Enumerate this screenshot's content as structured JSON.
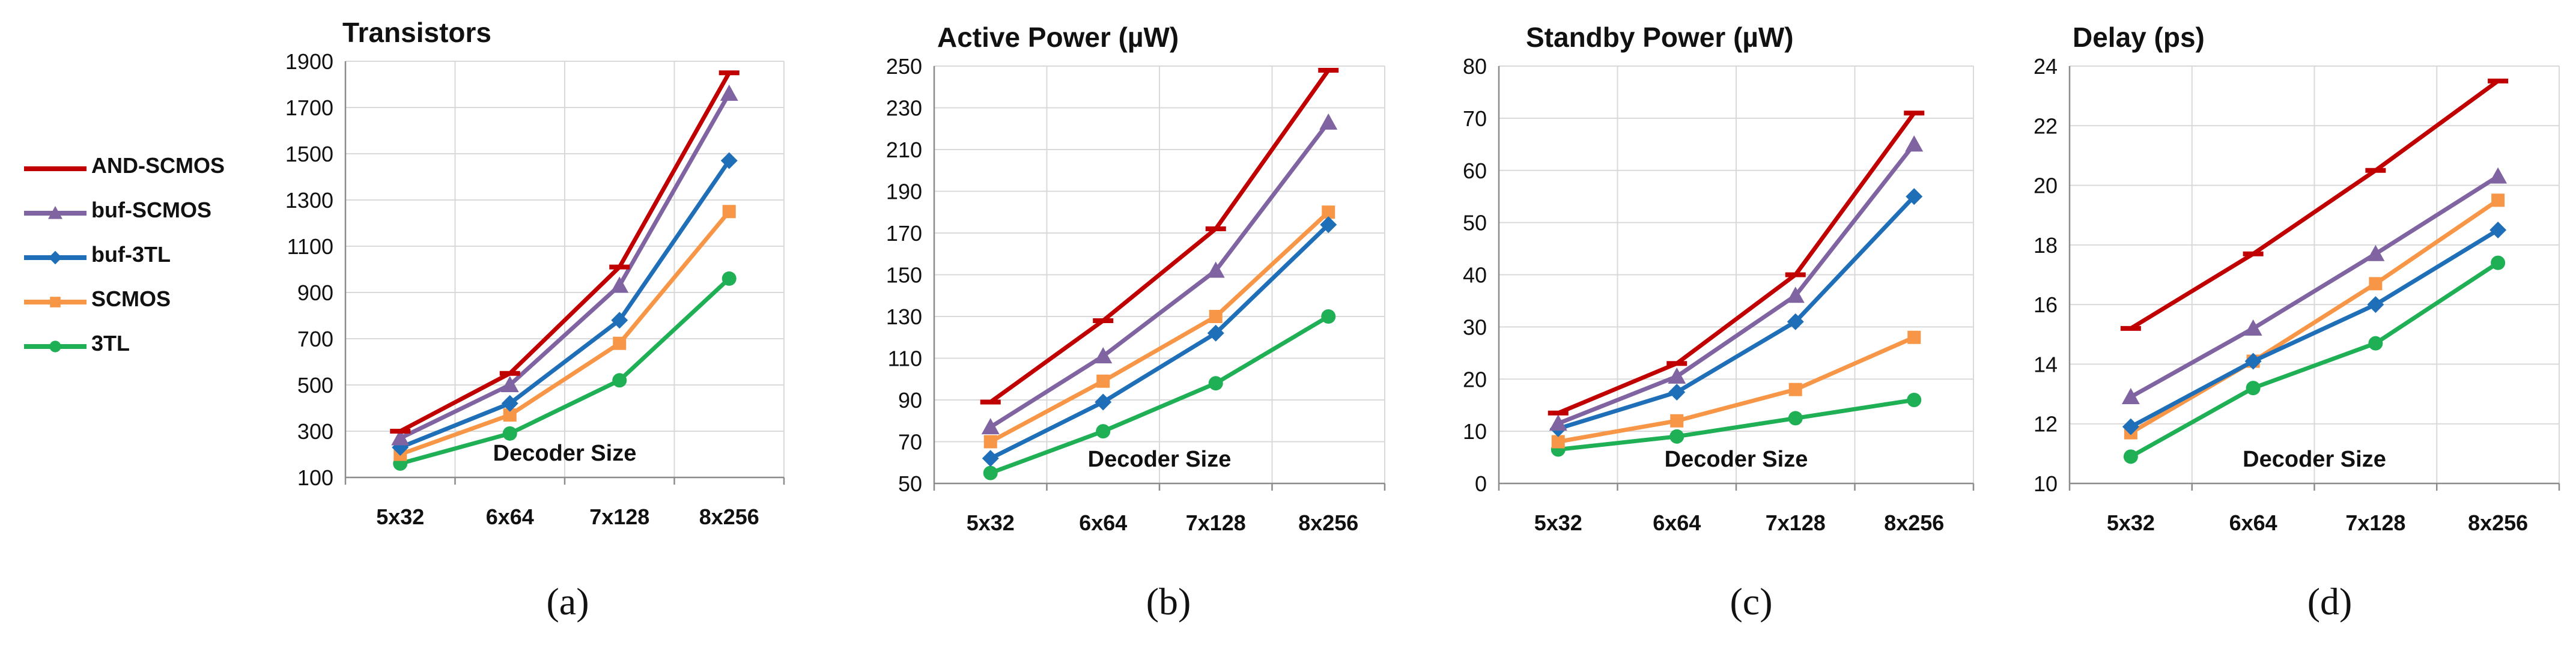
{
  "legend": [
    {
      "name": "AND-SCMOS",
      "color": "#C00000",
      "marker": "dash"
    },
    {
      "name": "buf-SCMOS",
      "color": "#8064A2",
      "marker": "triangle"
    },
    {
      "name": "buf-3TL",
      "color": "#1F6FB8",
      "marker": "diamond"
    },
    {
      "name": "SCMOS",
      "color": "#F79646",
      "marker": "square"
    },
    {
      "name": "3TL",
      "color": "#1FAF55",
      "marker": "circle"
    }
  ],
  "captions": [
    "(a)",
    "(b)",
    "(c)",
    "(d)"
  ],
  "chart_data": [
    {
      "type": "line",
      "title": "Transistors",
      "xlabel": "Decoder Size",
      "ylabel": "",
      "categories": [
        "5x32",
        "6x64",
        "7x128",
        "8x256"
      ],
      "ylim": [
        100,
        1900
      ],
      "yticks": [
        100,
        300,
        500,
        700,
        900,
        1100,
        1300,
        1500,
        1700,
        1900
      ],
      "grid": true,
      "legend_placement": "left",
      "series": [
        {
          "name": "AND-SCMOS",
          "values": [
            300,
            550,
            1010,
            1850
          ]
        },
        {
          "name": "buf-SCMOS",
          "values": [
            270,
            500,
            930,
            1760
          ]
        },
        {
          "name": "buf-3TL",
          "values": [
            230,
            420,
            780,
            1470
          ]
        },
        {
          "name": "SCMOS",
          "values": [
            200,
            370,
            680,
            1250
          ]
        },
        {
          "name": "3TL",
          "values": [
            160,
            290,
            520,
            960
          ]
        }
      ]
    },
    {
      "type": "line",
      "title": "Active Power (µW)",
      "xlabel": "Decoder Size",
      "ylabel": "",
      "categories": [
        "5x32",
        "6x64",
        "7x128",
        "8x256"
      ],
      "ylim": [
        50,
        250
      ],
      "yticks": [
        50,
        70,
        90,
        110,
        130,
        150,
        170,
        190,
        210,
        230,
        250
      ],
      "grid": true,
      "series": [
        {
          "name": "AND-SCMOS",
          "values": [
            89,
            128,
            172,
            248
          ]
        },
        {
          "name": "buf-SCMOS",
          "values": [
            77,
            111,
            152,
            223
          ]
        },
        {
          "name": "buf-3TL",
          "values": [
            62,
            89,
            122,
            174
          ]
        },
        {
          "name": "SCMOS",
          "values": [
            70,
            99,
            130,
            180
          ]
        },
        {
          "name": "3TL",
          "values": [
            55,
            75,
            98,
            130
          ]
        }
      ]
    },
    {
      "type": "line",
      "title": "Standby Power (µW)",
      "xlabel": "Decoder Size",
      "ylabel": "",
      "categories": [
        "5x32",
        "6x64",
        "7x128",
        "8x256"
      ],
      "ylim": [
        0,
        80
      ],
      "yticks": [
        0,
        10,
        20,
        30,
        40,
        50,
        60,
        70,
        80
      ],
      "grid": true,
      "series": [
        {
          "name": "AND-SCMOS",
          "values": [
            13.5,
            23,
            40,
            71
          ]
        },
        {
          "name": "buf-SCMOS",
          "values": [
            11.5,
            20.5,
            36,
            65
          ]
        },
        {
          "name": "buf-3TL",
          "values": [
            10.5,
            17.5,
            31,
            55
          ]
        },
        {
          "name": "SCMOS",
          "values": [
            8,
            12,
            18,
            28
          ]
        },
        {
          "name": "3TL",
          "values": [
            6.5,
            9,
            12.5,
            16
          ]
        }
      ]
    },
    {
      "type": "line",
      "title": "Delay (ps)",
      "xlabel": "Decoder Size",
      "ylabel": "",
      "categories": [
        "5x32",
        "6x64",
        "7x128",
        "8x256"
      ],
      "ylim": [
        10,
        24
      ],
      "yticks": [
        10,
        12,
        14,
        16,
        18,
        20,
        22,
        24
      ],
      "grid": true,
      "series": [
        {
          "name": "AND-SCMOS",
          "values": [
            15.2,
            17.7,
            20.5,
            23.5
          ]
        },
        {
          "name": "buf-SCMOS",
          "values": [
            12.9,
            15.2,
            17.7,
            20.3
          ]
        },
        {
          "name": "buf-3TL",
          "values": [
            11.9,
            14.1,
            16.0,
            18.5
          ]
        },
        {
          "name": "SCMOS",
          "values": [
            11.7,
            14.1,
            16.7,
            19.5
          ]
        },
        {
          "name": "3TL",
          "values": [
            10.9,
            13.2,
            14.7,
            17.4
          ]
        }
      ]
    }
  ]
}
